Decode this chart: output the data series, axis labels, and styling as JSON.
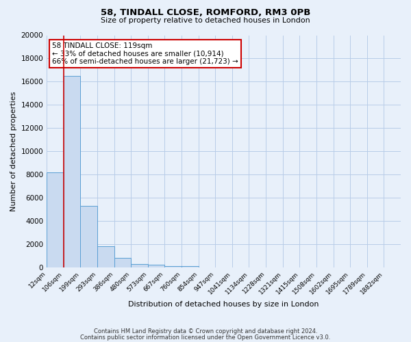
{
  "title1": "58, TINDALL CLOSE, ROMFORD, RM3 0PB",
  "title2": "Size of property relative to detached houses in London",
  "xlabel": "Distribution of detached houses by size in London",
  "ylabel": "Number of detached properties",
  "bin_labels": [
    "12sqm",
    "106sqm",
    "199sqm",
    "293sqm",
    "386sqm",
    "480sqm",
    "573sqm",
    "667sqm",
    "760sqm",
    "854sqm",
    "947sqm",
    "1041sqm",
    "1134sqm",
    "1228sqm",
    "1321sqm",
    "1415sqm",
    "1508sqm",
    "1602sqm",
    "1695sqm",
    "1789sqm",
    "1882sqm"
  ],
  "bar_heights": [
    8200,
    16500,
    5300,
    1800,
    800,
    300,
    200,
    100,
    100,
    0,
    0,
    0,
    0,
    0,
    0,
    0,
    0,
    0,
    0,
    0
  ],
  "bar_color": "#c9daf0",
  "bar_edge_color": "#5a9fd4",
  "background_color": "#e8f0fa",
  "grid_color": "#b8cce8",
  "ylim": [
    0,
    20000
  ],
  "yticks": [
    0,
    2000,
    4000,
    6000,
    8000,
    10000,
    12000,
    14000,
    16000,
    18000,
    20000
  ],
  "red_line_x": 1,
  "annotation_title": "58 TINDALL CLOSE: 119sqm",
  "annotation_line1": "← 33% of detached houses are smaller (10,914)",
  "annotation_line2": "66% of semi-detached houses are larger (21,723) →",
  "annotation_box_color": "#ffffff",
  "annotation_box_edge": "#cc0000",
  "red_line_color": "#cc0000",
  "footer1": "Contains HM Land Registry data © Crown copyright and database right 2024.",
  "footer2": "Contains public sector information licensed under the Open Government Licence v3.0."
}
